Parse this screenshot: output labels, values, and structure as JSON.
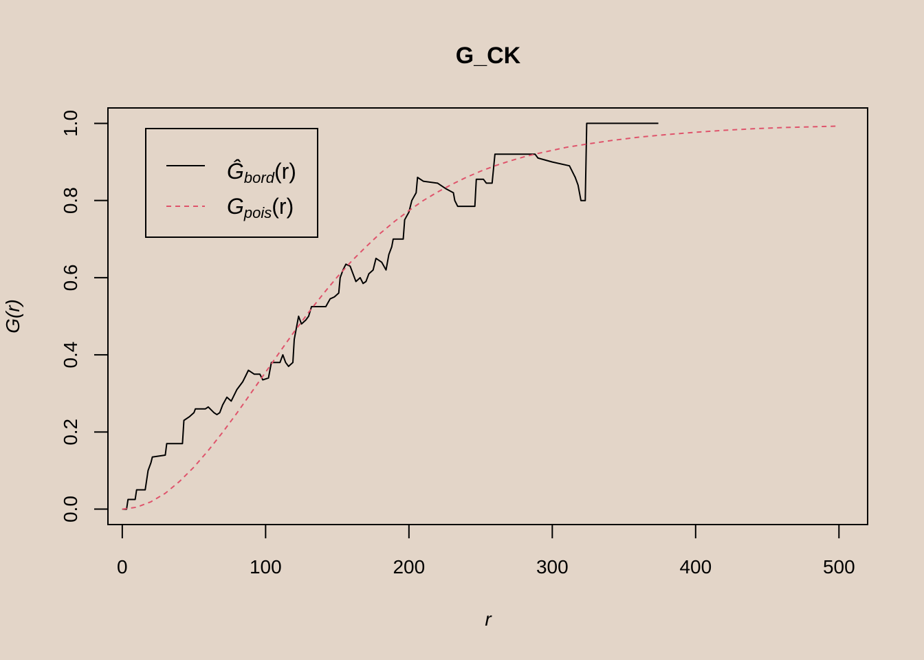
{
  "chart_data": {
    "type": "line",
    "title": "G_CK",
    "xlabel": "r",
    "ylabel": "G(r)",
    "xlim": [
      -10,
      520
    ],
    "ylim": [
      -0.04,
      1.04
    ],
    "xticks": [
      0,
      100,
      200,
      300,
      400,
      500
    ],
    "yticks": [
      "0.0",
      "0.2",
      "0.4",
      "0.6",
      "0.8",
      "1.0"
    ],
    "grid": false,
    "legend_position": "top-left",
    "series": [
      {
        "name_main": "Ĝ",
        "name_sub": "bord",
        "name_suffix": "(r)",
        "color": "#000000",
        "style": "solid",
        "points": [
          [
            0,
            0.0
          ],
          [
            3,
            0.0
          ],
          [
            4,
            0.025
          ],
          [
            9,
            0.025
          ],
          [
            10,
            0.05
          ],
          [
            16,
            0.05
          ],
          [
            18,
            0.1
          ],
          [
            20,
            0.12
          ],
          [
            21,
            0.135
          ],
          [
            30,
            0.14
          ],
          [
            31,
            0.17
          ],
          [
            42,
            0.17
          ],
          [
            43,
            0.23
          ],
          [
            47,
            0.24
          ],
          [
            50,
            0.25
          ],
          [
            51,
            0.26
          ],
          [
            58,
            0.26
          ],
          [
            60,
            0.265
          ],
          [
            64,
            0.25
          ],
          [
            66,
            0.245
          ],
          [
            68,
            0.25
          ],
          [
            70,
            0.27
          ],
          [
            73,
            0.29
          ],
          [
            76,
            0.28
          ],
          [
            80,
            0.31
          ],
          [
            84,
            0.33
          ],
          [
            86,
            0.345
          ],
          [
            88,
            0.36
          ],
          [
            92,
            0.35
          ],
          [
            96,
            0.35
          ],
          [
            98,
            0.335
          ],
          [
            102,
            0.34
          ],
          [
            104,
            0.38
          ],
          [
            110,
            0.38
          ],
          [
            112,
            0.4
          ],
          [
            114,
            0.38
          ],
          [
            116,
            0.37
          ],
          [
            119,
            0.38
          ],
          [
            120,
            0.44
          ],
          [
            123,
            0.5
          ],
          [
            125,
            0.48
          ],
          [
            128,
            0.49
          ],
          [
            130,
            0.5
          ],
          [
            132,
            0.525
          ],
          [
            142,
            0.525
          ],
          [
            145,
            0.545
          ],
          [
            148,
            0.55
          ],
          [
            151,
            0.56
          ],
          [
            152,
            0.6
          ],
          [
            154,
            0.62
          ],
          [
            156,
            0.635
          ],
          [
            159,
            0.63
          ],
          [
            161,
            0.61
          ],
          [
            163,
            0.59
          ],
          [
            166,
            0.6
          ],
          [
            168,
            0.585
          ],
          [
            170,
            0.59
          ],
          [
            172,
            0.61
          ],
          [
            175,
            0.62
          ],
          [
            177,
            0.65
          ],
          [
            181,
            0.64
          ],
          [
            184,
            0.62
          ],
          [
            186,
            0.66
          ],
          [
            188,
            0.68
          ],
          [
            189,
            0.7
          ],
          [
            196,
            0.7
          ],
          [
            197,
            0.75
          ],
          [
            200,
            0.77
          ],
          [
            202,
            0.8
          ],
          [
            205,
            0.82
          ],
          [
            206,
            0.86
          ],
          [
            210,
            0.85
          ],
          [
            220,
            0.845
          ],
          [
            226,
            0.83
          ],
          [
            231,
            0.82
          ],
          [
            232,
            0.8
          ],
          [
            234,
            0.785
          ],
          [
            246,
            0.785
          ],
          [
            247,
            0.855
          ],
          [
            252,
            0.855
          ],
          [
            254,
            0.845
          ],
          [
            258,
            0.845
          ],
          [
            260,
            0.92
          ],
          [
            288,
            0.92
          ],
          [
            290,
            0.91
          ],
          [
            300,
            0.9
          ],
          [
            312,
            0.89
          ],
          [
            316,
            0.86
          ],
          [
            318,
            0.84
          ],
          [
            320,
            0.8
          ],
          [
            323,
            0.8
          ],
          [
            324,
            1.0
          ],
          [
            374,
            1.0
          ]
        ]
      },
      {
        "name_main": "G",
        "name_sub": "pois",
        "name_suffix": "(r)",
        "color": "#df536b",
        "style": "dashed",
        "points": [
          [
            0,
            0.0
          ],
          [
            10,
            0.005
          ],
          [
            20,
            0.019
          ],
          [
            30,
            0.041
          ],
          [
            40,
            0.072
          ],
          [
            50,
            0.109
          ],
          [
            60,
            0.152
          ],
          [
            70,
            0.199
          ],
          [
            80,
            0.249
          ],
          [
            90,
            0.302
          ],
          [
            100,
            0.355
          ],
          [
            110,
            0.408
          ],
          [
            120,
            0.46
          ],
          [
            130,
            0.51
          ],
          [
            140,
            0.557
          ],
          [
            150,
            0.602
          ],
          [
            160,
            0.643
          ],
          [
            170,
            0.68
          ],
          [
            180,
            0.715
          ],
          [
            190,
            0.746
          ],
          [
            200,
            0.774
          ],
          [
            210,
            0.8
          ],
          [
            220,
            0.822
          ],
          [
            230,
            0.842
          ],
          [
            240,
            0.86
          ],
          [
            250,
            0.876
          ],
          [
            260,
            0.89
          ],
          [
            270,
            0.902
          ],
          [
            280,
            0.913
          ],
          [
            290,
            0.922
          ],
          [
            300,
            0.93
          ],
          [
            310,
            0.938
          ],
          [
            320,
            0.944
          ],
          [
            340,
            0.955
          ],
          [
            360,
            0.964
          ],
          [
            380,
            0.971
          ],
          [
            400,
            0.977
          ],
          [
            420,
            0.982
          ],
          [
            440,
            0.986
          ],
          [
            460,
            0.989
          ],
          [
            480,
            0.991
          ],
          [
            500,
            0.993
          ]
        ]
      }
    ]
  }
}
